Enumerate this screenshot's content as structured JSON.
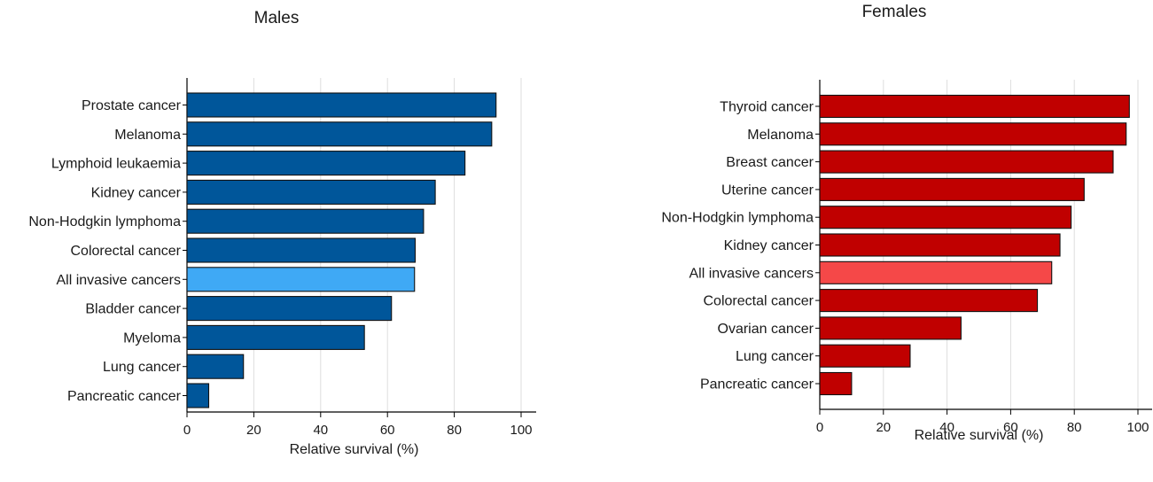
{
  "chart_data": [
    {
      "type": "bar",
      "orientation": "horizontal",
      "title": "Males",
      "xlabel": "Relative survival (%)",
      "ylabel": "",
      "xlim": [
        0,
        100
      ],
      "xticks": [
        0,
        20,
        40,
        60,
        80,
        100
      ],
      "grid": "vertical",
      "categories": [
        "Prostate cancer",
        "Melanoma",
        "Lymphoid leukaemia",
        "Kidney cancer",
        "Non-Hodgkin lymphoma",
        "Colorectal cancer",
        "All invasive cancers",
        "Bladder cancer",
        "Myeloma",
        "Lung cancer",
        "Pancreatic cancer"
      ],
      "values": [
        92.5,
        91.2,
        83.2,
        74.3,
        70.8,
        68.3,
        68.1,
        61.2,
        53.1,
        16.9,
        6.5
      ],
      "bar_color": "#00569a",
      "highlight_category": "All invasive cancers",
      "highlight_color": "#3fa9f5"
    },
    {
      "type": "bar",
      "orientation": "horizontal",
      "title": "Females",
      "xlabel": "Relative survival (%)",
      "ylabel": "",
      "xlim": [
        0,
        100
      ],
      "xticks": [
        0,
        20,
        40,
        60,
        80,
        100
      ],
      "grid": "vertical",
      "categories": [
        "Thyroid cancer",
        "Melanoma",
        "Breast cancer",
        "Uterine cancer",
        "Non-Hodgkin lymphoma",
        "Kidney cancer",
        "All invasive cancers",
        "Colorectal cancer",
        "Ovarian cancer",
        "Lung cancer",
        "Pancreatic cancer"
      ],
      "values": [
        97.3,
        96.3,
        92.2,
        83.1,
        79.0,
        75.5,
        72.9,
        68.4,
        44.4,
        28.4,
        10.0
      ],
      "bar_color": "#c00000",
      "highlight_category": "All invasive cancers",
      "highlight_color": "#f54848"
    }
  ]
}
